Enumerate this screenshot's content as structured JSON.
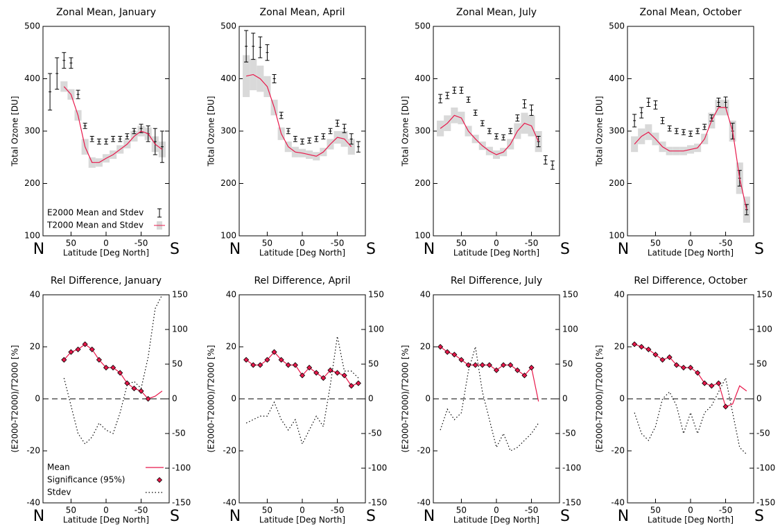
{
  "chart_data": [
    {
      "type": "line",
      "title": "Zonal Mean, January",
      "y_label": "Total Ozone [DU]",
      "x_label": "Latitude [Deg North]",
      "x_end_labels": [
        "N",
        "S"
      ],
      "x": [
        80,
        70,
        60,
        50,
        40,
        30,
        20,
        10,
        0,
        -10,
        -20,
        -30,
        -40,
        -50,
        -60,
        -70,
        -80
      ],
      "xlim": [
        90,
        -90
      ],
      "xticks": [
        50,
        0,
        -50
      ],
      "ylim": [
        100,
        500
      ],
      "yticks": [
        100,
        200,
        300,
        400,
        500
      ],
      "legend": "lower left",
      "series": [
        {
          "name": "E2000 Mean and Stdev",
          "color": "#000000",
          "style": "errorbar",
          "values": [
            375,
            410,
            435,
            430,
            370,
            310,
            285,
            280,
            280,
            285,
            285,
            290,
            300,
            305,
            295,
            280,
            270
          ],
          "errors": [
            35,
            30,
            15,
            10,
            8,
            5,
            5,
            5,
            5,
            5,
            5,
            5,
            5,
            8,
            15,
            25,
            30
          ]
        },
        {
          "name": "T2000 Mean and Stdev",
          "color": "#e8174a",
          "band_color": "#d9d9d9",
          "style": "band",
          "values": [
            null,
            null,
            385,
            370,
            330,
            270,
            240,
            240,
            248,
            255,
            265,
            275,
            290,
            300,
            295,
            275,
            265
          ],
          "errors": [
            null,
            null,
            10,
            10,
            10,
            15,
            10,
            8,
            8,
            8,
            8,
            8,
            10,
            10,
            12,
            15,
            15
          ]
        }
      ]
    },
    {
      "type": "line",
      "title": "Zonal Mean, April",
      "y_label": "Total Ozone [DU]",
      "x_label": "Latitude [Deg North]",
      "x_end_labels": [
        "N",
        "S"
      ],
      "x": [
        80,
        70,
        60,
        50,
        40,
        30,
        20,
        10,
        0,
        -10,
        -20,
        -30,
        -40,
        -50,
        -60,
        -70,
        -80
      ],
      "xlim": [
        90,
        -90
      ],
      "xticks": [
        50,
        0,
        -50
      ],
      "ylim": [
        100,
        500
      ],
      "yticks": [
        100,
        200,
        300,
        400,
        500
      ],
      "series": [
        {
          "color": "#000000",
          "style": "errorbar",
          "values": [
            462,
            462,
            460,
            450,
            400,
            330,
            300,
            285,
            280,
            282,
            285,
            290,
            300,
            315,
            305,
            285,
            270
          ],
          "errors": [
            30,
            25,
            20,
            15,
            8,
            6,
            5,
            5,
            5,
            5,
            5,
            5,
            5,
            6,
            8,
            10,
            10
          ]
        },
        {
          "color": "#e8174a",
          "band_color": "#d9d9d9",
          "style": "band",
          "values": [
            405,
            408,
            400,
            385,
            345,
            295,
            270,
            260,
            258,
            255,
            252,
            260,
            275,
            288,
            285,
            270,
            null
          ],
          "errors": [
            40,
            30,
            25,
            20,
            15,
            12,
            10,
            10,
            8,
            8,
            8,
            8,
            10,
            12,
            15,
            15,
            null
          ]
        }
      ]
    },
    {
      "type": "line",
      "title": "Zonal Mean, July",
      "y_label": "Total Ozone [DU]",
      "x_label": "Latitude [Deg North]",
      "x_end_labels": [
        "N",
        "S"
      ],
      "x": [
        80,
        70,
        60,
        50,
        40,
        30,
        20,
        10,
        0,
        -10,
        -20,
        -30,
        -40,
        -50,
        -60,
        -70,
        -80
      ],
      "xlim": [
        90,
        -90
      ],
      "xticks": [
        50,
        0,
        -50
      ],
      "ylim": [
        100,
        500
      ],
      "yticks": [
        100,
        200,
        300,
        400,
        500
      ],
      "series": [
        {
          "color": "#000000",
          "style": "errorbar",
          "values": [
            362,
            368,
            378,
            378,
            360,
            335,
            315,
            300,
            290,
            288,
            300,
            325,
            352,
            340,
            280,
            245,
            235
          ],
          "errors": [
            8,
            6,
            6,
            6,
            5,
            5,
            5,
            5,
            5,
            5,
            5,
            6,
            8,
            10,
            10,
            8,
            8
          ]
        },
        {
          "color": "#e8174a",
          "band_color": "#d9d9d9",
          "style": "band",
          "values": [
            305,
            315,
            330,
            325,
            300,
            285,
            272,
            262,
            255,
            260,
            275,
            300,
            315,
            310,
            280,
            null,
            null
          ],
          "errors": [
            15,
            15,
            15,
            12,
            10,
            8,
            8,
            8,
            8,
            8,
            10,
            15,
            20,
            20,
            20,
            null,
            null
          ]
        }
      ]
    },
    {
      "type": "line",
      "title": "Zonal Mean, October",
      "y_label": "Total Ozone [DU]",
      "x_label": "Latitude [Deg North]",
      "x_end_labels": [
        "N",
        "S"
      ],
      "x": [
        80,
        70,
        60,
        50,
        40,
        30,
        20,
        10,
        0,
        -10,
        -20,
        -30,
        -40,
        -50,
        -60,
        -70,
        -80
      ],
      "xlim": [
        90,
        -90
      ],
      "xticks": [
        50,
        0,
        -50
      ],
      "ylim": [
        100,
        500
      ],
      "yticks": [
        100,
        200,
        300,
        400,
        500
      ],
      "series": [
        {
          "color": "#000000",
          "style": "errorbar",
          "values": [
            320,
            335,
            355,
            350,
            320,
            305,
            300,
            298,
            295,
            300,
            308,
            325,
            355,
            355,
            300,
            210,
            150
          ],
          "errors": [
            12,
            10,
            8,
            8,
            6,
            5,
            5,
            5,
            5,
            5,
            5,
            6,
            8,
            10,
            15,
            15,
            10
          ]
        },
        {
          "color": "#e8174a",
          "band_color": "#d9d9d9",
          "style": "band",
          "values": [
            275,
            290,
            298,
            285,
            270,
            262,
            262,
            262,
            265,
            268,
            285,
            320,
            345,
            345,
            300,
            210,
            150
          ],
          "errors": [
            15,
            15,
            15,
            12,
            10,
            8,
            8,
            8,
            8,
            8,
            10,
            15,
            15,
            15,
            20,
            30,
            25
          ]
        }
      ]
    },
    {
      "type": "line",
      "title": "Rel Difference, January",
      "y_label": "(E2000-T2000)/T2000 [%]",
      "x_label": "Latitude [Deg North]",
      "x_end_labels": [
        "N",
        "S"
      ],
      "x": [
        80,
        70,
        60,
        50,
        40,
        30,
        20,
        10,
        0,
        -10,
        -20,
        -30,
        -40,
        -50,
        -60,
        -70,
        -80
      ],
      "xlim": [
        90,
        -90
      ],
      "xticks": [
        50,
        0,
        -50
      ],
      "ylim": [
        -40,
        40
      ],
      "yticks": [
        -40,
        -20,
        0,
        20,
        40
      ],
      "y2lim": [
        -150,
        150
      ],
      "y2ticks": [
        -150,
        -100,
        -50,
        0,
        50,
        100,
        150
      ],
      "zero_line": true,
      "legend": "lower left",
      "series": [
        {
          "name": "Mean",
          "color": "#e8174a",
          "style": "line",
          "values": [
            null,
            null,
            15,
            18,
            19,
            21,
            19,
            15,
            12,
            12,
            10,
            6,
            4,
            3,
            0,
            1,
            3
          ]
        },
        {
          "name": "Significance (95%)",
          "color": "#e8174a",
          "style": "markers",
          "values": [
            null,
            null,
            15,
            18,
            19,
            21,
            19,
            15,
            12,
            12,
            10,
            6,
            4,
            3,
            0,
            null,
            null
          ]
        },
        {
          "name": "Stdev",
          "color": "#000000",
          "style": "dotted",
          "axis": "y2",
          "values": [
            null,
            null,
            30,
            -10,
            -50,
            -65,
            -55,
            -35,
            -45,
            -50,
            -20,
            20,
            25,
            15,
            60,
            130,
            150
          ]
        }
      ]
    },
    {
      "type": "line",
      "title": "Rel Difference, April",
      "y_label": "(E2000-T2000)/T2000 [%]",
      "x_label": "Latitude [Deg North]",
      "x_end_labels": [
        "N",
        "S"
      ],
      "x": [
        80,
        70,
        60,
        50,
        40,
        30,
        20,
        10,
        0,
        -10,
        -20,
        -30,
        -40,
        -50,
        -60,
        -70,
        -80
      ],
      "xlim": [
        90,
        -90
      ],
      "xticks": [
        50,
        0,
        -50
      ],
      "ylim": [
        -40,
        40
      ],
      "yticks": [
        -40,
        -20,
        0,
        20,
        40
      ],
      "y2lim": [
        -150,
        150
      ],
      "y2ticks": [
        -150,
        -100,
        -50,
        0,
        50,
        100,
        150
      ],
      "zero_line": true,
      "series": [
        {
          "color": "#e8174a",
          "style": "line",
          "values": [
            15,
            13,
            13,
            15,
            18,
            15,
            13,
            13,
            9,
            12,
            10,
            8,
            11,
            10,
            9,
            5,
            6
          ]
        },
        {
          "color": "#e8174a",
          "style": "markers",
          "values": [
            15,
            13,
            13,
            15,
            18,
            15,
            13,
            13,
            9,
            12,
            10,
            8,
            11,
            10,
            9,
            5,
            6
          ]
        },
        {
          "color": "#000000",
          "style": "dotted",
          "axis": "y2",
          "values": [
            -35,
            -30,
            -25,
            -25,
            -5,
            -30,
            -45,
            -30,
            -65,
            -45,
            -25,
            -40,
            20,
            90,
            40,
            40,
            30
          ]
        }
      ]
    },
    {
      "type": "line",
      "title": "Rel Difference, July",
      "y_label": "(E2000-T2000)/T2000 [%]",
      "x_label": "Latitude [Deg North]",
      "x_end_labels": [
        "N",
        "S"
      ],
      "x": [
        80,
        70,
        60,
        50,
        40,
        30,
        20,
        10,
        0,
        -10,
        -20,
        -30,
        -40,
        -50,
        -60,
        -70,
        -80
      ],
      "xlim": [
        90,
        -90
      ],
      "xticks": [
        50,
        0,
        -50
      ],
      "ylim": [
        -40,
        40
      ],
      "yticks": [
        -40,
        -20,
        0,
        20,
        40
      ],
      "y2lim": [
        -150,
        150
      ],
      "y2ticks": [
        -150,
        -100,
        -50,
        0,
        50,
        100,
        150
      ],
      "zero_line": true,
      "series": [
        {
          "color": "#e8174a",
          "style": "line",
          "values": [
            20,
            18,
            17,
            15,
            13,
            13,
            13,
            13,
            11,
            13,
            13,
            11,
            9,
            12,
            -1,
            null,
            null
          ]
        },
        {
          "color": "#e8174a",
          "style": "markers",
          "values": [
            20,
            18,
            17,
            15,
            13,
            13,
            13,
            13,
            11,
            13,
            13,
            11,
            9,
            12,
            null,
            null,
            null
          ]
        },
        {
          "color": "#000000",
          "style": "dotted",
          "axis": "y2",
          "values": [
            -45,
            -15,
            -30,
            -20,
            40,
            75,
            10,
            -30,
            -70,
            -50,
            -75,
            -70,
            -60,
            -50,
            -35,
            null,
            null
          ]
        }
      ]
    },
    {
      "type": "line",
      "title": "Rel Difference, October",
      "y_label": "(E2000-T2000)/T2000 [%]",
      "x_label": "Latitude [Deg North]",
      "x_end_labels": [
        "N",
        "S"
      ],
      "x": [
        80,
        70,
        60,
        50,
        40,
        30,
        20,
        10,
        0,
        -10,
        -20,
        -30,
        -40,
        -50,
        -60,
        -70,
        -80
      ],
      "xlim": [
        90,
        -90
      ],
      "xticks": [
        50,
        0,
        -50
      ],
      "ylim": [
        -40,
        40
      ],
      "yticks": [
        -40,
        -20,
        0,
        20,
        40
      ],
      "y2lim": [
        -150,
        150
      ],
      "y2ticks": [
        -150,
        -100,
        -50,
        0,
        50,
        100,
        150
      ],
      "zero_line": true,
      "series": [
        {
          "color": "#e8174a",
          "style": "line",
          "values": [
            21,
            20,
            19,
            17,
            15,
            16,
            13,
            12,
            12,
            10,
            6,
            5,
            6,
            -3,
            -2,
            5,
            3
          ]
        },
        {
          "color": "#e8174a",
          "style": "markers",
          "values": [
            21,
            20,
            19,
            17,
            15,
            16,
            13,
            12,
            12,
            10,
            6,
            5,
            6,
            -3,
            null,
            null,
            null
          ]
        },
        {
          "color": "#000000",
          "style": "dotted",
          "axis": "y2",
          "values": [
            -20,
            -50,
            -60,
            -40,
            0,
            10,
            -10,
            -50,
            -20,
            -50,
            -20,
            -10,
            10,
            30,
            -20,
            -70,
            -80
          ]
        }
      ]
    }
  ]
}
